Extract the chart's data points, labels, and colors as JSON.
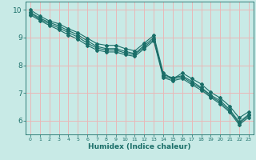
{
  "title": "",
  "xlabel": "Humidex (Indice chaleur)",
  "ylabel": "",
  "xlim": [
    -0.5,
    23.5
  ],
  "ylim": [
    5.5,
    10.3
  ],
  "xticks": [
    0,
    1,
    2,
    3,
    4,
    5,
    6,
    7,
    8,
    9,
    10,
    11,
    12,
    13,
    14,
    15,
    16,
    17,
    18,
    19,
    20,
    21,
    22,
    23
  ],
  "yticks": [
    6,
    7,
    8,
    9,
    10
  ],
  "background_color": "#c8eae6",
  "grid_color": "#e8b8b8",
  "line_color": "#1a6e68",
  "lines": [
    [
      10.0,
      9.78,
      9.6,
      9.5,
      9.32,
      9.18,
      8.98,
      8.78,
      8.72,
      8.72,
      8.6,
      8.52,
      8.8,
      9.08,
      7.72,
      7.5,
      7.72,
      7.52,
      7.32,
      7.02,
      6.82,
      6.52,
      6.1,
      6.32
    ],
    [
      9.92,
      9.7,
      9.55,
      9.42,
      9.25,
      9.1,
      8.88,
      8.68,
      8.6,
      8.6,
      8.5,
      8.42,
      8.72,
      9.0,
      7.65,
      7.55,
      7.62,
      7.42,
      7.2,
      6.92,
      6.72,
      6.4,
      5.95,
      6.22
    ],
    [
      9.88,
      9.66,
      9.5,
      9.35,
      9.18,
      9.02,
      8.8,
      8.62,
      8.55,
      8.55,
      8.44,
      8.38,
      8.66,
      8.94,
      7.6,
      7.5,
      7.58,
      7.36,
      7.16,
      6.88,
      6.66,
      6.35,
      5.9,
      6.18
    ],
    [
      9.82,
      9.62,
      9.44,
      9.28,
      9.1,
      8.94,
      8.72,
      8.55,
      8.48,
      8.48,
      8.38,
      8.32,
      8.6,
      8.88,
      7.55,
      7.44,
      7.52,
      7.3,
      7.1,
      6.84,
      6.6,
      6.3,
      5.85,
      6.12
    ]
  ]
}
